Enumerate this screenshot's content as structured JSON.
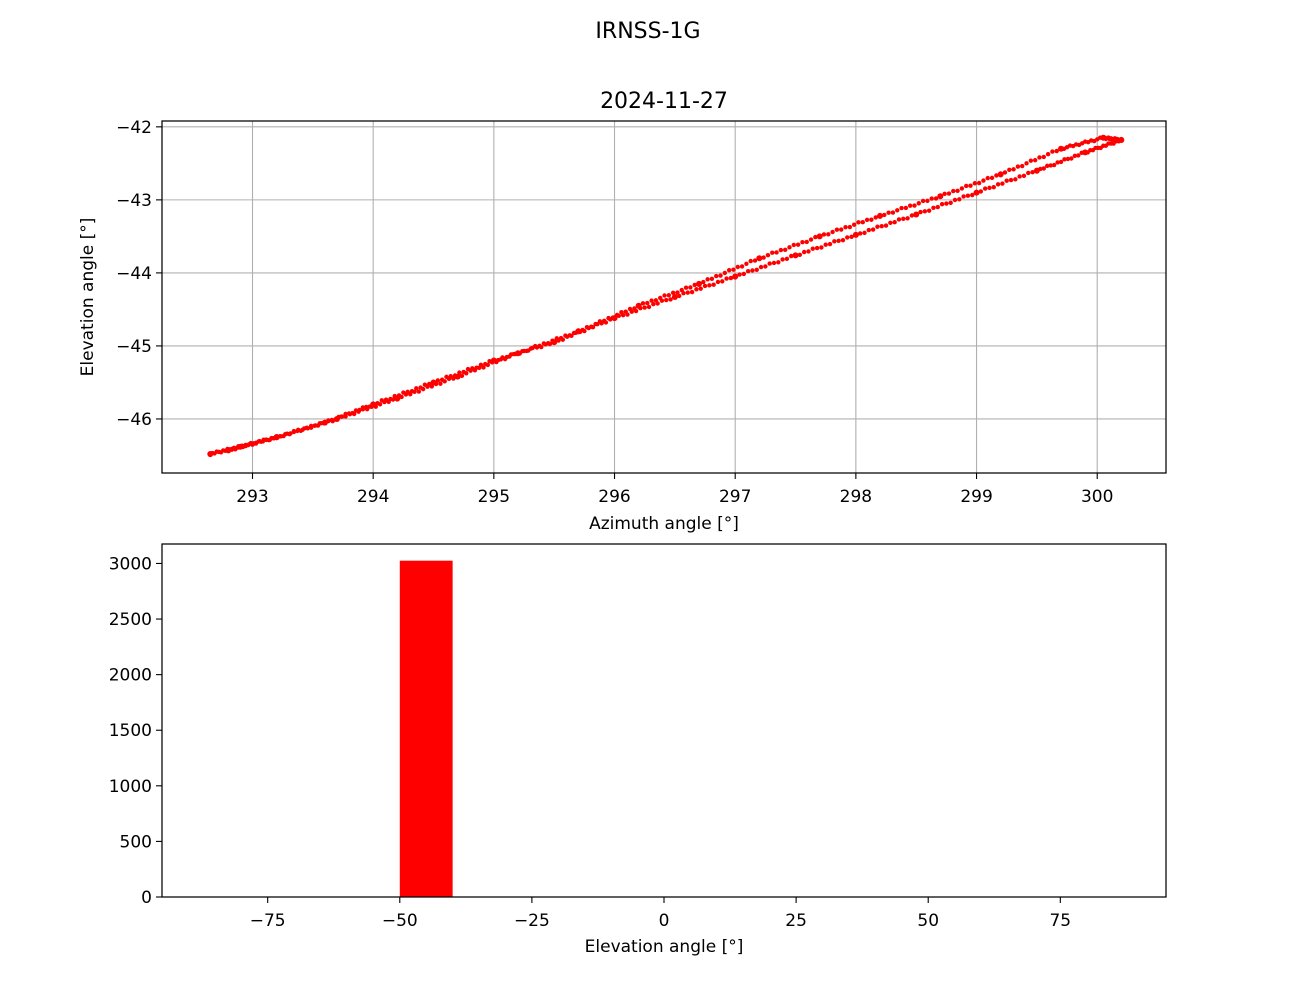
{
  "figure": {
    "suptitle": "IRNSS-1G"
  },
  "chart_data": [
    {
      "type": "scatter",
      "title": "2024-11-27",
      "xlabel": "Azimuth angle [°]",
      "ylabel": "Elevation angle [°]",
      "xlim": [
        292.25,
        300.57
      ],
      "ylim": [
        -46.74,
        -41.92
      ],
      "xticks": [
        293,
        294,
        295,
        296,
        297,
        298,
        299,
        300
      ],
      "yticks": [
        -42,
        -43,
        -44,
        -45,
        -46
      ],
      "grid": true,
      "marker_color": "#ff0000",
      "series": [
        {
          "points": [
            [
              292.65,
              -46.48
            ],
            [
              292.9,
              -46.38
            ],
            [
              293.2,
              -46.25
            ],
            [
              293.6,
              -46.05
            ],
            [
              294.0,
              -45.8
            ],
            [
              294.5,
              -45.5
            ],
            [
              295.0,
              -45.2
            ],
            [
              295.5,
              -44.95
            ],
            [
              296.0,
              -44.62
            ],
            [
              296.5,
              -44.33
            ],
            [
              297.0,
              -44.05
            ],
            [
              297.5,
              -43.76
            ],
            [
              298.0,
              -43.48
            ],
            [
              298.5,
              -43.2
            ],
            [
              299.0,
              -42.9
            ],
            [
              299.5,
              -42.6
            ],
            [
              299.9,
              -42.35
            ],
            [
              300.2,
              -42.18
            ],
            [
              300.05,
              -42.15
            ],
            [
              299.7,
              -42.3
            ],
            [
              299.2,
              -42.65
            ],
            [
              298.7,
              -42.95
            ],
            [
              298.2,
              -43.22
            ],
            [
              297.7,
              -43.5
            ],
            [
              297.2,
              -43.8
            ],
            [
              296.7,
              -44.15
            ],
            [
              296.2,
              -44.45
            ],
            [
              295.7,
              -44.8
            ],
            [
              295.2,
              -45.1
            ],
            [
              294.7,
              -45.42
            ],
            [
              294.2,
              -45.72
            ],
            [
              293.7,
              -46.0
            ],
            [
              293.2,
              -46.25
            ],
            [
              292.8,
              -46.43
            ]
          ]
        }
      ]
    },
    {
      "type": "bar",
      "xlabel": "Elevation angle [°]",
      "xlim": [
        -95,
        95
      ],
      "ylim": [
        0,
        3175
      ],
      "xticks": [
        -75,
        -50,
        -25,
        0,
        25,
        50,
        75
      ],
      "yticks": [
        0,
        500,
        1000,
        1500,
        2000,
        2500,
        3000
      ],
      "grid": false,
      "bar_color": "#ff0000",
      "bins": [
        {
          "start": -50,
          "end": -40,
          "value": 3025
        }
      ]
    }
  ]
}
